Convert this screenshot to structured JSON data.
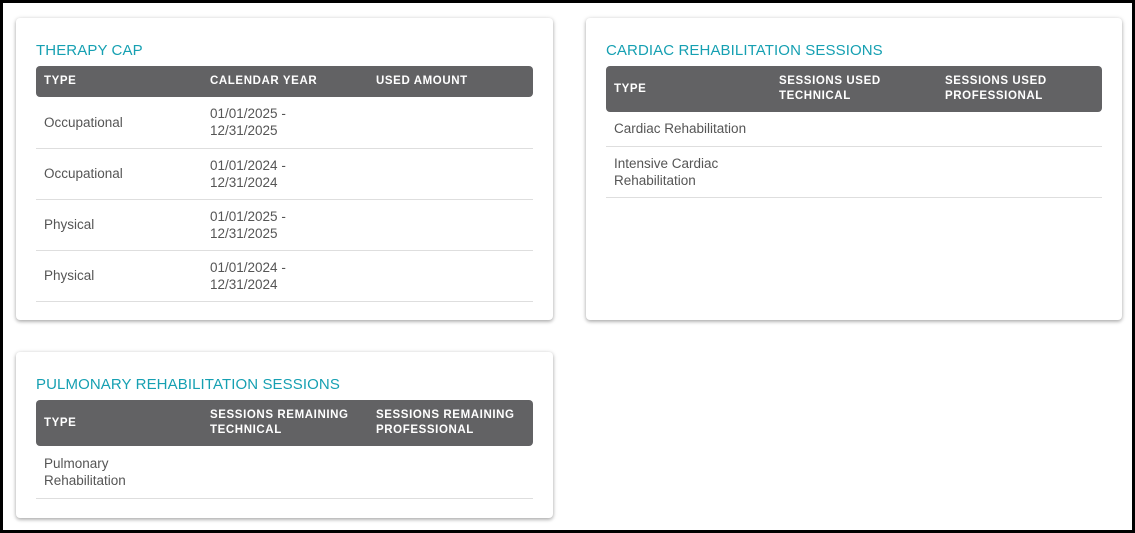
{
  "therapy_cap": {
    "title": "THERAPY CAP",
    "columns": [
      "TYPE",
      "CALENDAR YEAR",
      "USED AMOUNT"
    ],
    "rows": [
      {
        "type": "Occupational",
        "year_start": "01/01/2025 -",
        "year_end": "12/31/2025",
        "used": ""
      },
      {
        "type": "Occupational",
        "year_start": "01/01/2024 -",
        "year_end": "12/31/2024",
        "used": ""
      },
      {
        "type": "Physical",
        "year_start": "01/01/2025 -",
        "year_end": "12/31/2025",
        "used": ""
      },
      {
        "type": "Physical",
        "year_start": "01/01/2024 -",
        "year_end": "12/31/2024",
        "used": ""
      }
    ]
  },
  "cardiac": {
    "title": "CARDIAC REHABILITATION SESSIONS",
    "columns": [
      "TYPE",
      "SESSIONS USED TECHNICAL",
      "SESSIONS USED PROFESSIONAL"
    ],
    "rows": [
      {
        "type": "Cardiac Rehabilitation",
        "technical": "",
        "professional": ""
      },
      {
        "type": "Intensive Cardiac Rehabilitation",
        "technical": "",
        "professional": ""
      }
    ]
  },
  "pulmonary": {
    "title": "PULMONARY REHABILITATION SESSIONS",
    "columns": [
      "TYPE",
      "SESSIONS REMAINING TECHNICAL",
      "SESSIONS REMAINING PROFESSIONAL"
    ],
    "rows": [
      {
        "type": "Pulmonary Rehabilitation",
        "technical": "",
        "professional": ""
      }
    ]
  },
  "colors": {
    "accent": "#16a0b2",
    "header_bg": "#626264"
  }
}
